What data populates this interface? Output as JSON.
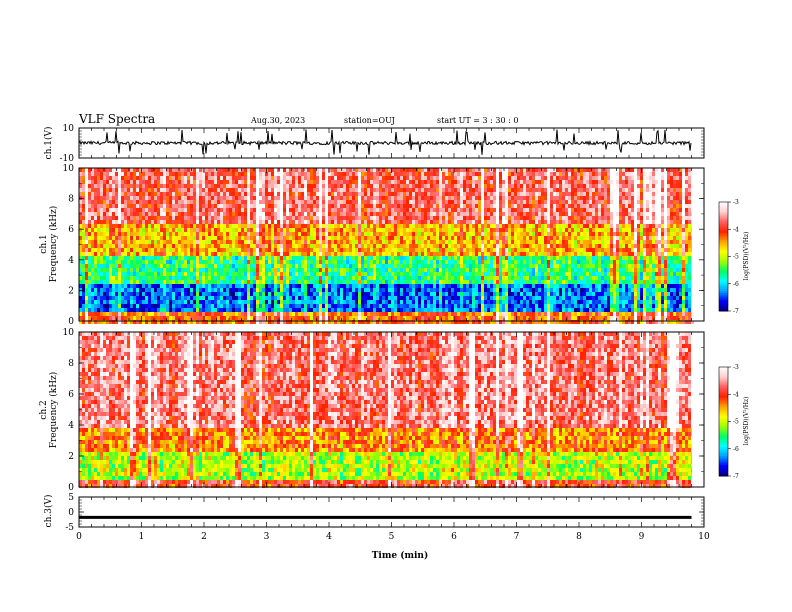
{
  "header": {
    "title": "VLF Spectra",
    "date": "Aug.30, 2023",
    "station": "station=OUJ",
    "start": "start  UT =   3 : 30 : 0"
  },
  "colors": {
    "spectrum_scale": [
      "#000080",
      "#0000ff",
      "#00a0ff",
      "#00ffff",
      "#00ff60",
      "#a0ff00",
      "#ffff00",
      "#ffa000",
      "#ff2000",
      "#ff6060",
      "#ffd0d0",
      "#ffffff"
    ]
  },
  "chart_data": [
    {
      "type": "line",
      "name": "ch1-waveform",
      "ylabel": "ch.1(V)",
      "ylim": [
        -10,
        10
      ],
      "yticks": [
        "10",
        "-10"
      ],
      "xlim": [
        0,
        10
      ],
      "x": [
        0,
        1,
        2,
        3,
        4,
        5,
        6,
        7,
        8,
        9,
        9.8
      ],
      "y": [
        0,
        0,
        0,
        0,
        0,
        0,
        0,
        0,
        0,
        0,
        0
      ],
      "description_values": {
        "baseline": 0,
        "typical_spike_min": -8,
        "typical_spike_max": 9
      }
    },
    {
      "type": "heatmap",
      "name": "ch1-spectrogram",
      "ylabel": "ch.1\nFrequency  (kHz)",
      "ylim": [
        0,
        10
      ],
      "yticks": [
        "0",
        "2",
        "4",
        "6",
        "8",
        "10"
      ],
      "xlim": [
        0,
        10
      ],
      "data_end_min": 9.8,
      "colorbar": {
        "label": "log(PSD)(V²/Hz)",
        "range": [
          -7,
          -3
        ],
        "ticks": [
          "-3",
          "-4",
          "-5",
          "-6",
          "-7"
        ]
      },
      "dominant_log_psd_by_band_khz": [
        {
          "band": [
            0,
            0.6
          ],
          "log_psd": -4.5
        },
        {
          "band": [
            0.6,
            2.5
          ],
          "log_psd": -6.6
        },
        {
          "band": [
            2.5,
            4.5
          ],
          "log_psd": -5.8
        },
        {
          "band": [
            4.5,
            6.5
          ],
          "log_psd": -4.8
        },
        {
          "band": [
            6.5,
            10
          ],
          "log_psd": -4.0
        }
      ]
    },
    {
      "type": "heatmap",
      "name": "ch2-spectrogram",
      "ylabel": "ch.2\nFrequency  (kHz)",
      "ylim": [
        0,
        10
      ],
      "yticks": [
        "0",
        "2",
        "4",
        "6",
        "8",
        "10"
      ],
      "xlim": [
        0,
        10
      ],
      "data_end_min": 9.8,
      "colorbar": {
        "label": "log(PSD)(V²/Hz)",
        "range": [
          -7,
          -3
        ],
        "ticks": [
          "-3",
          "-4",
          "-5",
          "-6",
          "-7"
        ]
      },
      "dominant_log_psd_by_band_khz": [
        {
          "band": [
            0,
            0.5
          ],
          "log_psd": -4.2
        },
        {
          "band": [
            0.5,
            2.5
          ],
          "log_psd": -5.3
        },
        {
          "band": [
            2.5,
            4.0
          ],
          "log_psd": -4.6
        },
        {
          "band": [
            4.0,
            10
          ],
          "log_psd": -3.9
        }
      ]
    },
    {
      "type": "line",
      "name": "ch3-waveform",
      "ylabel": "ch.3(V)",
      "ylim": [
        -5,
        5
      ],
      "yticks": [
        "5",
        "0",
        "-5"
      ],
      "xlim": [
        0,
        10
      ],
      "xlabel": "Time  (min)",
      "xticks": [
        "0",
        "1",
        "2",
        "3",
        "4",
        "5",
        "6",
        "7",
        "8",
        "9",
        "10"
      ],
      "x": [
        0,
        9.8
      ],
      "y": [
        -1.8,
        -1.8
      ]
    }
  ]
}
